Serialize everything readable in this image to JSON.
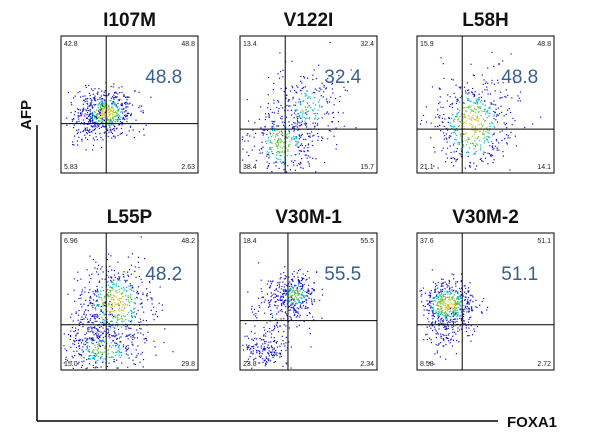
{
  "chart_data": {
    "type": "scatter",
    "subtype": "flow-cytometry-density-dot-plot",
    "xlabel": "FOXA1",
    "ylabel": "AFP",
    "grid": false,
    "legend": "none",
    "colors": {
      "background": "#ffffff",
      "frame": "#000000",
      "gate": "#000000",
      "big_label": "#3a5f8c",
      "density_low": "#1010cc",
      "density_mid": "#00b7c8",
      "density_high": "#5fc23a",
      "density_peak": "#d6c92a"
    },
    "panels": [
      {
        "title": "I107M",
        "highlight": "48.8",
        "quadrants": {
          "upper_left": "42.8",
          "upper_right": "48.8",
          "lower_left": "5.83",
          "lower_right": "2.63"
        },
        "gate": {
          "x": 0.33,
          "y": 0.36
        },
        "clusters": [
          {
            "cx": 0.33,
            "cy": 0.44,
            "sx": 0.1,
            "sy": 0.08,
            "n": 520
          },
          {
            "cx": 0.2,
            "cy": 0.4,
            "sx": 0.09,
            "sy": 0.1,
            "n": 140
          }
        ]
      },
      {
        "title": "V122I",
        "highlight": "32.4",
        "quadrants": {
          "upper_left": "13.4",
          "upper_right": "32.4",
          "lower_left": "38.4",
          "lower_right": "15.7"
        },
        "gate": {
          "x": 0.33,
          "y": 0.32
        },
        "clusters": [
          {
            "cx": 0.3,
            "cy": 0.22,
            "sx": 0.12,
            "sy": 0.13,
            "n": 330
          },
          {
            "cx": 0.48,
            "cy": 0.48,
            "sx": 0.13,
            "sy": 0.14,
            "n": 260
          }
        ]
      },
      {
        "title": "L58H",
        "highlight": "48.8",
        "quadrants": {
          "upper_left": "15.9",
          "upper_right": "48.8",
          "lower_left": "21.1",
          "lower_right": "14.1"
        },
        "gate": {
          "x": 0.33,
          "y": 0.32
        },
        "clusters": [
          {
            "cx": 0.4,
            "cy": 0.35,
            "sx": 0.14,
            "sy": 0.18,
            "n": 560
          }
        ]
      },
      {
        "title": "L55P",
        "highlight": "48.2",
        "quadrants": {
          "upper_left": "6.96",
          "upper_right": "48.2",
          "lower_left": "15.0",
          "lower_right": "29.8"
        },
        "gate": {
          "x": 0.33,
          "y": 0.33
        },
        "clusters": [
          {
            "cx": 0.4,
            "cy": 0.48,
            "sx": 0.13,
            "sy": 0.15,
            "n": 520
          },
          {
            "cx": 0.3,
            "cy": 0.15,
            "sx": 0.15,
            "sy": 0.09,
            "n": 300
          },
          {
            "cx": 0.22,
            "cy": 0.35,
            "sx": 0.1,
            "sy": 0.12,
            "n": 120
          }
        ]
      },
      {
        "title": "V30M-1",
        "highlight": "55.5",
        "quadrants": {
          "upper_left": "18.4",
          "upper_right": "55.5",
          "lower_left": "23.8",
          "lower_right": "2.34"
        },
        "gate": {
          "x": 0.35,
          "y": 0.36
        },
        "clusters": [
          {
            "cx": 0.4,
            "cy": 0.55,
            "sx": 0.08,
            "sy": 0.07,
            "n": 300
          },
          {
            "cx": 0.18,
            "cy": 0.14,
            "sx": 0.08,
            "sy": 0.07,
            "n": 150
          },
          {
            "cx": 0.25,
            "cy": 0.42,
            "sx": 0.12,
            "sy": 0.14,
            "n": 160
          }
        ]
      },
      {
        "title": "V30M-2",
        "highlight": "51.1",
        "quadrants": {
          "upper_left": "37.6",
          "upper_right": "51.1",
          "lower_left": "8.58",
          "lower_right": "2.72"
        },
        "gate": {
          "x": 0.33,
          "y": 0.33
        },
        "clusters": [
          {
            "cx": 0.22,
            "cy": 0.48,
            "sx": 0.1,
            "sy": 0.09,
            "n": 540
          },
          {
            "cx": 0.2,
            "cy": 0.28,
            "sx": 0.09,
            "sy": 0.09,
            "n": 100
          }
        ]
      }
    ]
  }
}
